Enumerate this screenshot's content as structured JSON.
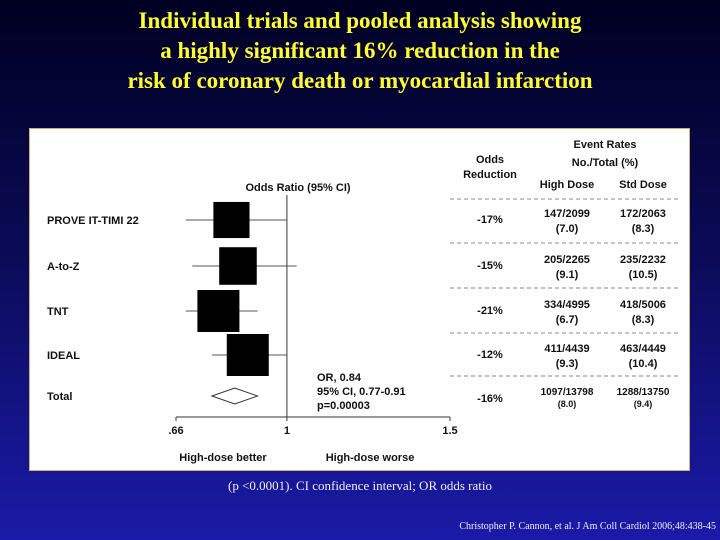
{
  "slide": {
    "title_lines": [
      "Individual trials and pooled analysis showing",
      "a highly significant 16% reduction in the",
      "risk of coronary death or myocardial infarction"
    ],
    "caption": "(p <0.0001). CI  confidence interval; OR  odds ratio",
    "citation": "Christopher P. Cannon, et al. J Am Coll Cardiol 2006;48:438-45"
  },
  "chart_data": {
    "type": "forest",
    "axis_title": "Odds Ratio (95% CI)",
    "xlim": [
      0.66,
      1.5
    ],
    "reference_line": 1,
    "x_ticks": [
      {
        "value": 0.66,
        "label": ".66"
      },
      {
        "value": 1,
        "label": "1"
      },
      {
        "value": 1.5,
        "label": "1.5"
      }
    ],
    "direction_labels": {
      "left": "High-dose better",
      "right": "High-dose worse"
    },
    "column_headers": {
      "odds_reduction": [
        "Odds",
        "Reduction"
      ],
      "event_rates": [
        "Event Rates",
        "No./Total (%)"
      ],
      "high_dose": "High Dose",
      "std_dose": "Std Dose"
    },
    "rows": [
      {
        "name": "PROVE IT-TIMI 22",
        "or": 0.83,
        "ci": [
          0.69,
          1.0
        ],
        "weight": 0.74,
        "odds_reduction": "-17%",
        "high_dose": "147/2099",
        "high_dose_pct": "(7.0)",
        "std_dose": "172/2063",
        "std_dose_pct": "(8.3)"
      },
      {
        "name": "A-to-Z",
        "or": 0.85,
        "ci": [
          0.71,
          1.03
        ],
        "weight": 0.8,
        "odds_reduction": "-15%",
        "high_dose": "205/2265",
        "high_dose_pct": "(9.1)",
        "std_dose": "235/2232",
        "std_dose_pct": "(10.5)"
      },
      {
        "name": "TNT",
        "or": 0.79,
        "ci": [
          0.69,
          0.91
        ],
        "weight": 1.0,
        "odds_reduction": "-21%",
        "high_dose": "334/4995",
        "high_dose_pct": "(6.7)",
        "std_dose": "418/5006",
        "std_dose_pct": "(8.3)"
      },
      {
        "name": "IDEAL",
        "or": 0.88,
        "ci": [
          0.77,
          1.0
        ],
        "weight": 1.0,
        "odds_reduction": "-12%",
        "high_dose": "411/4439",
        "high_dose_pct": "(9.3)",
        "std_dose": "463/4449",
        "std_dose_pct": "(10.4)"
      }
    ],
    "total": {
      "name": "Total",
      "or": 0.84,
      "ci": [
        0.77,
        0.91
      ],
      "odds_reduction": "-16%",
      "high_dose": "1097/13798",
      "high_dose_pct": "(8.0)",
      "std_dose": "1288/13750",
      "std_dose_pct": "(9.4)"
    },
    "annotation": [
      "OR, 0.84",
      "95% CI, 0.77-0.91",
      "p=0.00003"
    ]
  }
}
